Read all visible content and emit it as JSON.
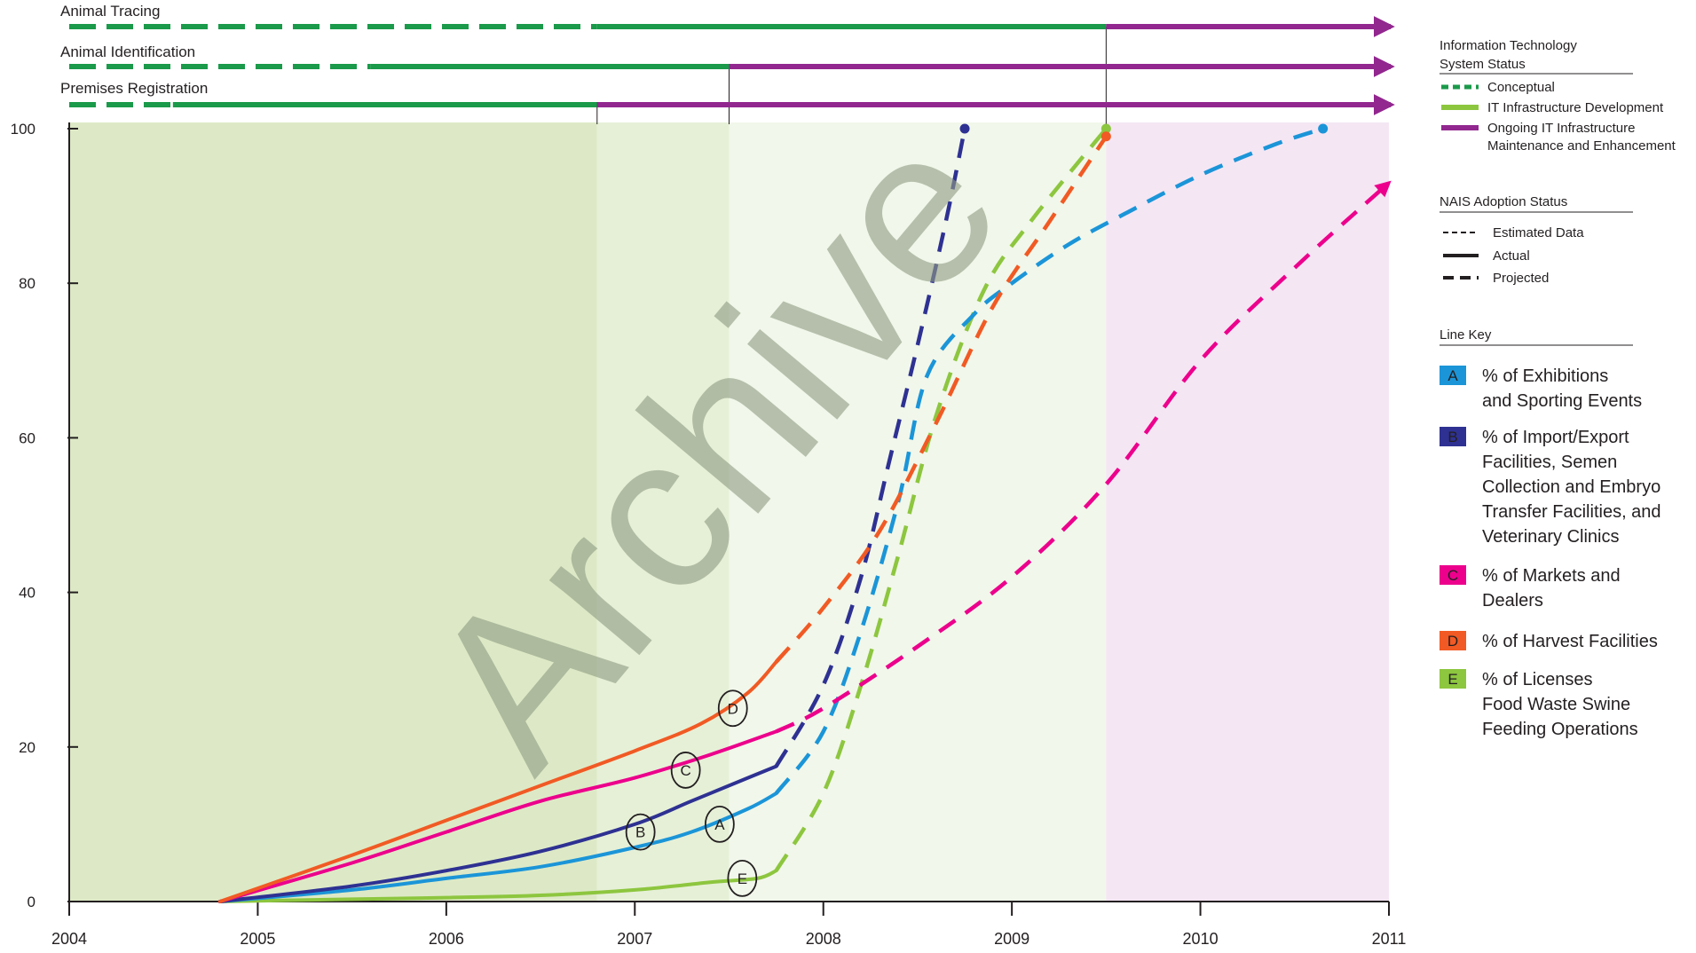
{
  "colors": {
    "it_green_dark": "#1a9a4a",
    "it_green_light": "#8cc63f",
    "it_purple": "#92278f",
    "line_A": "#1b95d8",
    "line_B": "#2e3192",
    "line_C": "#ec008c",
    "line_D": "#f15a24",
    "line_E": "#8dc63f",
    "bg_zone1": "#dde9c6",
    "bg_zone2": "#e6f0d7",
    "bg_zone3": "#f1f7ea",
    "bg_zone4": "#f5e6f4",
    "watermark": "#8f9c85"
  },
  "top_bars": {
    "tracing_label": "Animal Tracing",
    "identification_label": "Animal Identification",
    "premises_label": "Premises Registration"
  },
  "watermark": "Archive",
  "legend": {
    "it_title_line1": "Information Technology",
    "it_title_line2": "System Status",
    "conceptual": "Conceptual",
    "it_dev": "IT Infrastructure Development",
    "ongoing_line1": "Ongoing IT Infrastructure",
    "ongoing_line2": "Maintenance and Enhancement",
    "nais_title": "NAIS Adoption  Status",
    "estimated": "Estimated Data",
    "actual": "Actual",
    "projected": "Projected",
    "line_key_title": "Line Key",
    "keys": [
      {
        "letter": "A",
        "lines": [
          "% of Exhibitions",
          "and Sporting Events"
        ]
      },
      {
        "letter": "B",
        "lines": [
          "% of Import/Export",
          "Facilities, Semen",
          "Collection and Embryo",
          "Transfer Facilities,  and",
          "Veterinary Clinics"
        ]
      },
      {
        "letter": "C",
        "lines": [
          "% of Markets and",
          "Dealers"
        ]
      },
      {
        "letter": "D",
        "lines": [
          "% of Harvest Facilities"
        ]
      },
      {
        "letter": "E",
        "lines": [
          "% of Licenses",
          "Food Waste Swine",
          "Feeding Operations"
        ]
      }
    ]
  },
  "chart_data": {
    "type": "line",
    "title": "",
    "xlabel": "",
    "ylabel": "",
    "xlim": [
      2004,
      2011
    ],
    "ylim": [
      0,
      100
    ],
    "x_ticks": [
      "2004",
      "2005",
      "2006",
      "2007",
      "2008",
      "2009",
      "2010",
      "2011"
    ],
    "y_ticks": [
      "0",
      "20",
      "40",
      "60",
      "80",
      "100"
    ],
    "series": [
      {
        "key": "A",
        "actual": [
          [
            2004.8,
            0
          ],
          [
            2005.5,
            1.5
          ],
          [
            2006.0,
            3
          ],
          [
            2006.5,
            4.5
          ],
          [
            2007.0,
            7
          ],
          [
            2007.3,
            9
          ],
          [
            2007.6,
            12
          ],
          [
            2007.75,
            14
          ]
        ],
        "projected": [
          [
            2007.75,
            14
          ],
          [
            2008.0,
            22
          ],
          [
            2008.2,
            35
          ],
          [
            2008.4,
            52
          ],
          [
            2008.55,
            68
          ],
          [
            2008.8,
            76
          ],
          [
            2009.0,
            80
          ],
          [
            2009.3,
            85
          ],
          [
            2009.6,
            89
          ],
          [
            2010.0,
            94
          ],
          [
            2010.4,
            98
          ],
          [
            2010.65,
            100
          ]
        ],
        "end_marker": [
          2010.65,
          100
        ],
        "label_at": [
          2007.45,
          10
        ]
      },
      {
        "key": "B",
        "actual": [
          [
            2004.8,
            0
          ],
          [
            2005.5,
            2
          ],
          [
            2006.0,
            4
          ],
          [
            2006.5,
            6.5
          ],
          [
            2007.0,
            10
          ],
          [
            2007.3,
            13
          ],
          [
            2007.6,
            16
          ],
          [
            2007.75,
            17.5
          ]
        ],
        "projected": [
          [
            2007.75,
            17.5
          ],
          [
            2008.0,
            28
          ],
          [
            2008.2,
            42
          ],
          [
            2008.35,
            57
          ],
          [
            2008.5,
            72
          ],
          [
            2008.65,
            88
          ],
          [
            2008.75,
            100
          ]
        ],
        "end_marker": [
          2008.75,
          100
        ],
        "label_at": [
          2007.03,
          9
        ]
      },
      {
        "key": "C",
        "actual": [
          [
            2004.8,
            0
          ],
          [
            2005.5,
            5
          ],
          [
            2006.0,
            9
          ],
          [
            2006.5,
            13
          ],
          [
            2007.0,
            16
          ],
          [
            2007.4,
            19
          ],
          [
            2007.75,
            22
          ]
        ],
        "projected": [
          [
            2007.75,
            22
          ],
          [
            2008.0,
            25
          ],
          [
            2008.5,
            33
          ],
          [
            2009.0,
            42
          ],
          [
            2009.5,
            54
          ],
          [
            2010.0,
            70
          ],
          [
            2010.5,
            82
          ],
          [
            2011.0,
            93
          ]
        ],
        "end_marker": null,
        "label_at": [
          2007.27,
          17
        ]
      },
      {
        "key": "D",
        "actual": [
          [
            2004.8,
            0
          ],
          [
            2005.5,
            6
          ],
          [
            2006.0,
            10.5
          ],
          [
            2006.5,
            15
          ],
          [
            2007.0,
            19.5
          ],
          [
            2007.35,
            23
          ],
          [
            2007.6,
            27
          ],
          [
            2007.75,
            31
          ]
        ],
        "projected": [
          [
            2007.75,
            31
          ],
          [
            2008.0,
            38
          ],
          [
            2008.3,
            48
          ],
          [
            2008.6,
            62
          ],
          [
            2008.9,
            77
          ],
          [
            2009.2,
            88
          ],
          [
            2009.5,
            99
          ]
        ],
        "end_marker": [
          2009.5,
          99
        ],
        "label_at": [
          2007.52,
          25
        ]
      },
      {
        "key": "E",
        "actual": [
          [
            2004.8,
            0
          ],
          [
            2005.5,
            0.3
          ],
          [
            2006.0,
            0.5
          ],
          [
            2006.5,
            0.8
          ],
          [
            2007.0,
            1.5
          ],
          [
            2007.4,
            2.5
          ],
          [
            2007.65,
            3
          ],
          [
            2007.75,
            4
          ]
        ],
        "projected": [
          [
            2007.75,
            4
          ],
          [
            2008.0,
            14
          ],
          [
            2008.2,
            28
          ],
          [
            2008.4,
            45
          ],
          [
            2008.6,
            63
          ],
          [
            2008.85,
            79
          ],
          [
            2009.1,
            88
          ],
          [
            2009.5,
            100
          ]
        ],
        "end_marker": [
          2009.5,
          100
        ],
        "label_at": [
          2007.57,
          3
        ]
      }
    ],
    "it_bars": [
      {
        "name": "Animal Tracing",
        "segments": [
          {
            "status": "conceptual",
            "from": 2004.0,
            "to": 2006.8
          },
          {
            "status": "development",
            "from": 2006.8,
            "to": 2009.5
          },
          {
            "status": "ongoing",
            "from": 2009.5,
            "to": 2011.0
          }
        ]
      },
      {
        "name": "Animal Identification",
        "segments": [
          {
            "status": "conceptual",
            "from": 2004.0,
            "to": 2005.6
          },
          {
            "status": "development",
            "from": 2005.6,
            "to": 2007.5
          },
          {
            "status": "ongoing",
            "from": 2007.5,
            "to": 2011.0
          }
        ]
      },
      {
        "name": "Premises Registration",
        "segments": [
          {
            "status": "conceptual",
            "from": 2004.0,
            "to": 2004.55
          },
          {
            "status": "development",
            "from": 2004.55,
            "to": 2006.8
          },
          {
            "status": "ongoing",
            "from": 2006.8,
            "to": 2011.0
          }
        ]
      }
    ],
    "background_zones": [
      {
        "from": 2004.0,
        "to": 2006.8,
        "shade": "zone1"
      },
      {
        "from": 2006.8,
        "to": 2007.5,
        "shade": "zone2"
      },
      {
        "from": 2007.5,
        "to": 2009.5,
        "shade": "zone3"
      },
      {
        "from": 2009.5,
        "to": 2011.0,
        "shade": "zone4"
      }
    ],
    "grid": false,
    "legend_position": "right"
  }
}
